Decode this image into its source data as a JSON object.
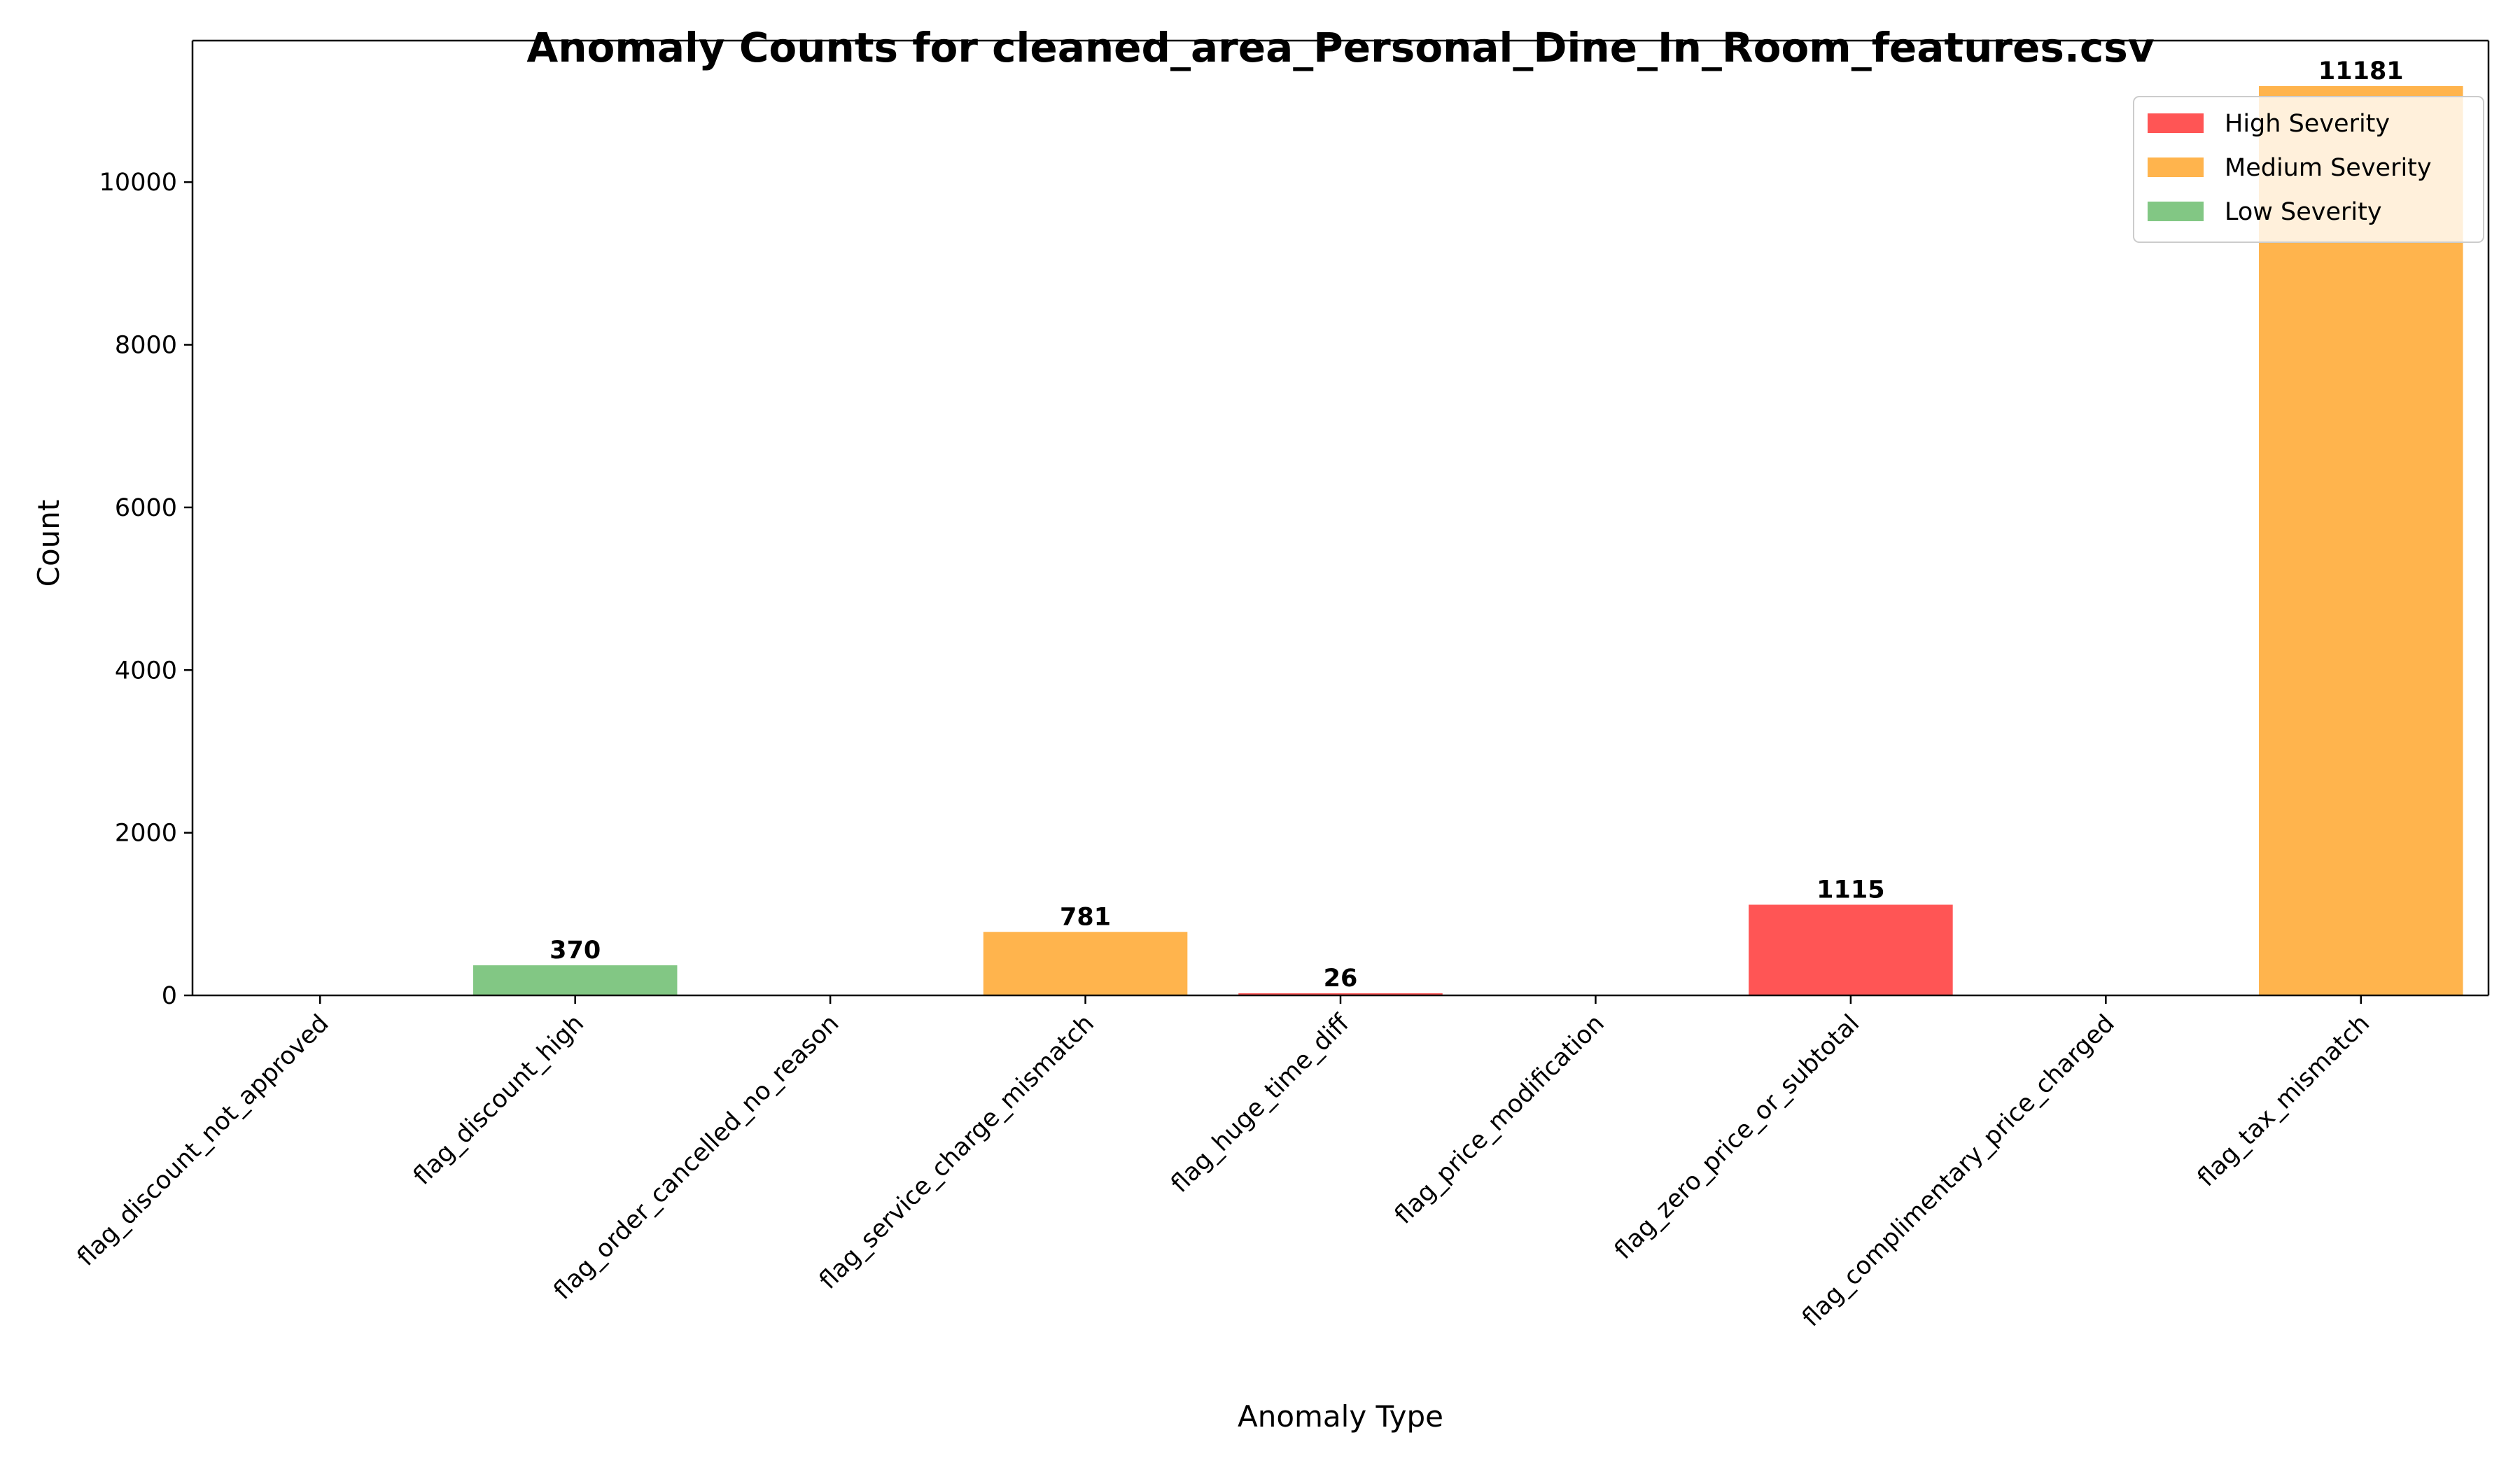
{
  "chart_data": {
    "type": "bar",
    "title": "Anomaly Counts for cleaned_area_Personal_Dine_In_Room_features.csv",
    "xlabel": "Anomaly Type",
    "ylabel": "Count",
    "ylim": [
      0,
      11740
    ],
    "yticks": [
      0,
      2000,
      4000,
      6000,
      8000,
      10000
    ],
    "grid": false,
    "legend_position": "top-right",
    "categories": [
      "flag_discount_not_approved",
      "flag_discount_high",
      "flag_order_cancelled_no_reason",
      "flag_service_charge_mismatch",
      "flag_huge_time_diff",
      "flag_price_modification",
      "flag_zero_price_or_subtotal",
      "flag_complimentary_price_charged",
      "flag_tax_mismatch"
    ],
    "values": [
      0,
      370,
      0,
      781,
      26,
      0,
      1115,
      0,
      11181
    ],
    "severity": [
      "low",
      "low",
      "medium",
      "medium",
      "high",
      "high",
      "high",
      "high",
      "medium"
    ],
    "data_labels": [
      "",
      "370",
      "",
      "781",
      "26",
      "",
      "1115",
      "",
      "11181"
    ],
    "legend": [
      {
        "key": "high",
        "label": "High Severity",
        "color": "#ff5555"
      },
      {
        "key": "medium",
        "label": "Medium Severity",
        "color": "#ffb44d"
      },
      {
        "key": "low",
        "label": "Low Severity",
        "color": "#82c784"
      }
    ]
  }
}
